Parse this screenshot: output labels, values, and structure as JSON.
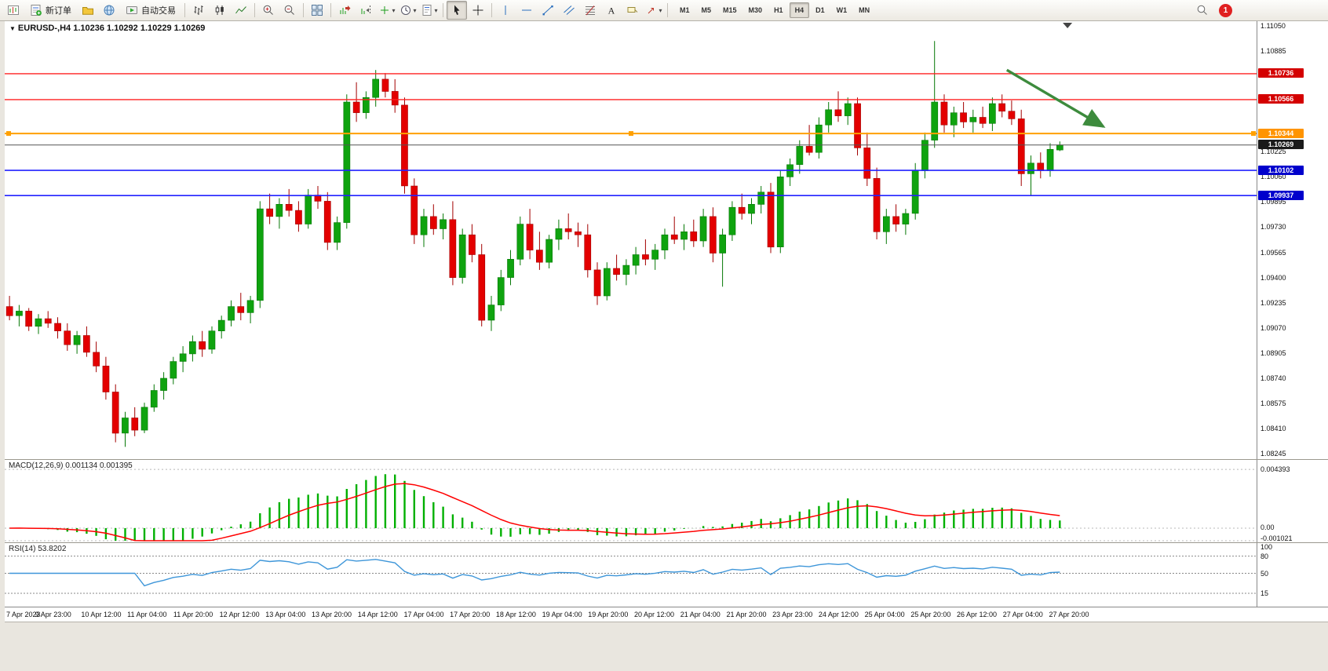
{
  "toolbar": {
    "new_order_label": "新订单",
    "auto_trading_label": "自动交易",
    "timeframes": [
      "M1",
      "M5",
      "M15",
      "M30",
      "H1",
      "H4",
      "D1",
      "W1",
      "MN"
    ],
    "active_timeframe": "H4",
    "notification_count": "1"
  },
  "header": {
    "quote": "EURUSD-,H4  1.10236 1.10292 1.10229 1.10269"
  },
  "chart_data": {
    "type": "candlestick",
    "symbol": "EURUSD-",
    "period": "H4",
    "last": {
      "open": "1.10236",
      "high": "1.10292",
      "low": "1.10229",
      "close": "1.10269"
    },
    "price_min": 1.0821,
    "price_max": 1.1108,
    "right_shift_slots": 20,
    "colors": {
      "background": "#ffffff",
      "up": "#0fa30f",
      "up_border": "#067806",
      "down": "#e30000",
      "down_border": "#a30000"
    },
    "hlines": [
      {
        "price": 1.10736,
        "color": "#ff2020",
        "badge": "#d40000",
        "label": "1.10736",
        "width": 1.4
      },
      {
        "price": 1.10566,
        "color": "#ff2020",
        "badge": "#d40000",
        "label": "1.10566",
        "width": 1.4
      },
      {
        "price": 1.10344,
        "color": "#ffa000",
        "badge": "#ff9400",
        "label": "1.10344",
        "width": 2,
        "selected": true
      },
      {
        "price": 1.10269,
        "color": "#555555",
        "badge": "#1a1a1a",
        "label": "1.10269",
        "width": 1
      },
      {
        "price": 1.10102,
        "color": "#2222ff",
        "badge": "#0000cc",
        "label": "1.10102",
        "width": 1.6
      },
      {
        "price": 1.09937,
        "color": "#2222ff",
        "badge": "#0000cc",
        "label": "1.09937",
        "width": 1.6
      }
    ],
    "price_axis_ticks": [
      1.1105,
      1.10885,
      1.10225,
      1.1006,
      1.09895,
      1.0973,
      1.09565,
      1.094,
      1.09235,
      1.0907,
      1.08905,
      1.0874,
      1.08575,
      1.0841,
      1.08245
    ],
    "candles": [
      [
        1.0921,
        1.0928,
        1.0912,
        1.0915
      ],
      [
        1.0915,
        1.0922,
        1.0908,
        1.0918
      ],
      [
        1.0918,
        1.092,
        1.0905,
        1.0908
      ],
      [
        1.0908,
        1.0916,
        1.0903,
        1.0913
      ],
      [
        1.0913,
        1.0918,
        1.0907,
        1.091
      ],
      [
        1.091,
        1.0914,
        1.09,
        1.0905
      ],
      [
        1.0905,
        1.091,
        1.0892,
        1.0896
      ],
      [
        1.0896,
        1.0905,
        1.089,
        1.0902
      ],
      [
        1.0902,
        1.0908,
        1.0888,
        1.0891
      ],
      [
        1.0891,
        1.0898,
        1.0878,
        1.0882
      ],
      [
        1.0882,
        1.0888,
        1.086,
        1.0865
      ],
      [
        1.0865,
        1.087,
        1.0832,
        1.0838
      ],
      [
        1.0838,
        1.0852,
        1.0829,
        1.0848
      ],
      [
        1.0848,
        1.0855,
        1.0836,
        1.084
      ],
      [
        1.084,
        1.0858,
        1.0838,
        1.0855
      ],
      [
        1.0855,
        1.087,
        1.0852,
        1.0866
      ],
      [
        1.0866,
        1.0878,
        1.086,
        1.0874
      ],
      [
        1.0874,
        1.0888,
        1.087,
        1.0885
      ],
      [
        1.0885,
        1.0895,
        1.0878,
        1.089
      ],
      [
        1.089,
        1.0902,
        1.0885,
        1.0898
      ],
      [
        1.0898,
        1.0905,
        1.0888,
        1.0893
      ],
      [
        1.0893,
        1.0908,
        1.089,
        1.0905
      ],
      [
        1.0905,
        1.0915,
        1.09,
        1.0912
      ],
      [
        1.0912,
        1.0925,
        1.0908,
        1.0921
      ],
      [
        1.0921,
        1.093,
        1.0912,
        1.0917
      ],
      [
        1.0917,
        1.0928,
        1.091,
        1.0925
      ],
      [
        1.0925,
        1.099,
        1.092,
        1.0985
      ],
      [
        1.0985,
        1.0995,
        1.0975,
        1.098
      ],
      [
        1.098,
        1.0992,
        1.0972,
        1.0988
      ],
      [
        1.0988,
        1.0998,
        1.098,
        1.0984
      ],
      [
        1.0984,
        1.099,
        1.097,
        1.0975
      ],
      [
        1.0975,
        1.0998,
        1.0972,
        1.0994
      ],
      [
        1.0994,
        1.1,
        1.0985,
        1.099
      ],
      [
        1.099,
        1.0996,
        1.0958,
        1.0963
      ],
      [
        1.0963,
        1.098,
        1.0958,
        1.0976
      ],
      [
        1.0976,
        1.106,
        1.0972,
        1.1055
      ],
      [
        1.1055,
        1.1068,
        1.1042,
        1.1048
      ],
      [
        1.1048,
        1.1062,
        1.1044,
        1.1058
      ],
      [
        1.1058,
        1.1076,
        1.1052,
        1.107
      ],
      [
        1.107,
        1.1074,
        1.1058,
        1.1062
      ],
      [
        1.1062,
        1.107,
        1.1048,
        1.1053
      ],
      [
        1.1053,
        1.1058,
        1.0995,
        1.1
      ],
      [
        1.1,
        1.1005,
        1.0962,
        1.0968
      ],
      [
        1.0968,
        1.0985,
        1.096,
        1.098
      ],
      [
        1.098,
        1.0988,
        1.0968,
        1.0972
      ],
      [
        1.0972,
        1.0982,
        1.0965,
        1.0978
      ],
      [
        1.0978,
        1.099,
        1.0935,
        1.094
      ],
      [
        1.094,
        1.0972,
        1.0936,
        1.0968
      ],
      [
        1.0968,
        1.0975,
        1.095,
        1.0955
      ],
      [
        1.0955,
        1.0962,
        1.0908,
        1.0912
      ],
      [
        1.0912,
        1.0928,
        1.0905,
        1.0922
      ],
      [
        1.0922,
        1.0945,
        1.0918,
        1.094
      ],
      [
        1.094,
        1.0958,
        1.0935,
        1.0952
      ],
      [
        1.0952,
        1.098,
        1.0948,
        1.0975
      ],
      [
        1.0975,
        1.0985,
        1.0952,
        1.0958
      ],
      [
        1.0958,
        1.097,
        1.0945,
        1.095
      ],
      [
        1.095,
        1.0968,
        1.0946,
        1.0965
      ],
      [
        1.0965,
        1.0978,
        1.0958,
        1.0972
      ],
      [
        1.0972,
        1.0982,
        1.0965,
        1.097
      ],
      [
        1.097,
        1.0976,
        1.096,
        1.0968
      ],
      [
        1.0968,
        1.0975,
        1.094,
        1.0945
      ],
      [
        1.0945,
        1.095,
        1.0922,
        1.0928
      ],
      [
        1.0928,
        1.095,
        1.0925,
        1.0946
      ],
      [
        1.0946,
        1.0955,
        1.0938,
        1.0942
      ],
      [
        1.0942,
        1.0952,
        1.0935,
        1.0948
      ],
      [
        1.0948,
        1.096,
        1.0942,
        1.0955
      ],
      [
        1.0955,
        1.0965,
        1.0948,
        1.0952
      ],
      [
        1.0952,
        1.0962,
        1.0945,
        1.0958
      ],
      [
        1.0958,
        1.0972,
        1.0952,
        1.0968
      ],
      [
        1.0968,
        1.098,
        1.0962,
        1.0965
      ],
      [
        1.0965,
        1.0975,
        1.0958,
        1.097
      ],
      [
        1.097,
        1.0978,
        1.096,
        1.0964
      ],
      [
        1.0964,
        1.0985,
        1.096,
        1.098
      ],
      [
        1.098,
        1.0986,
        1.095,
        1.0956
      ],
      [
        1.0956,
        1.0972,
        1.0934,
        1.0968
      ],
      [
        1.0968,
        1.099,
        1.0964,
        1.0986
      ],
      [
        1.0986,
        1.0995,
        1.0978,
        1.0982
      ],
      [
        1.0982,
        1.0992,
        1.0975,
        1.0988
      ],
      [
        1.0988,
        1.1,
        1.0982,
        1.0996
      ],
      [
        1.0996,
        1.1002,
        1.0956,
        1.096
      ],
      [
        1.096,
        1.101,
        1.0956,
        1.1006
      ],
      [
        1.1006,
        1.1018,
        1.1,
        1.1014
      ],
      [
        1.1014,
        1.103,
        1.1008,
        1.1026
      ],
      [
        1.1026,
        1.104,
        1.102,
        1.1022
      ],
      [
        1.1022,
        1.1045,
        1.1018,
        1.104
      ],
      [
        1.104,
        1.1055,
        1.1035,
        1.105
      ],
      [
        1.105,
        1.1062,
        1.1042,
        1.1046
      ],
      [
        1.1046,
        1.1058,
        1.104,
        1.1054
      ],
      [
        1.1054,
        1.1058,
        1.102,
        1.1025
      ],
      [
        1.1025,
        1.1035,
        1.1,
        1.1005
      ],
      [
        1.1005,
        1.1012,
        1.0965,
        1.097
      ],
      [
        1.097,
        1.0985,
        1.0962,
        1.098
      ],
      [
        1.098,
        1.0988,
        1.097,
        1.0975
      ],
      [
        1.0975,
        1.0985,
        1.0968,
        1.0982
      ],
      [
        1.0982,
        1.1015,
        1.0978,
        1.101
      ],
      [
        1.101,
        1.1035,
        1.1005,
        1.103
      ],
      [
        1.103,
        1.1095,
        1.1025,
        1.1055
      ],
      [
        1.1055,
        1.106,
        1.1035,
        1.104
      ],
      [
        1.104,
        1.1052,
        1.1032,
        1.1048
      ],
      [
        1.1048,
        1.1055,
        1.1038,
        1.1042
      ],
      [
        1.1042,
        1.105,
        1.1035,
        1.1045
      ],
      [
        1.1045,
        1.1052,
        1.1038,
        1.1041
      ],
      [
        1.1041,
        1.1058,
        1.1036,
        1.1054
      ],
      [
        1.1054,
        1.106,
        1.1045,
        1.1049
      ],
      [
        1.1049,
        1.1056,
        1.104,
        1.1044
      ],
      [
        1.1044,
        1.105,
        1.1,
        1.1008
      ],
      [
        1.1008,
        1.102,
        1.0994,
        1.1015
      ],
      [
        1.1015,
        1.1022,
        1.1005,
        1.101
      ],
      [
        1.101,
        1.1028,
        1.1006,
        1.1024
      ],
      [
        1.10236,
        1.10292,
        1.10229,
        1.10269
      ]
    ],
    "time_labels": [
      "7 Apr 2023",
      "9 Apr 23:00",
      "10 Apr 12:00",
      "11 Apr 04:00",
      "11 Apr 20:00",
      "12 Apr 12:00",
      "13 Apr 04:00",
      "13 Apr 20:00",
      "14 Apr 12:00",
      "17 Apr 04:00",
      "17 Apr 20:00",
      "18 Apr 12:00",
      "19 Apr 04:00",
      "19 Apr 20:00",
      "20 Apr 12:00",
      "21 Apr 04:00",
      "21 Apr 20:00",
      "23 Apr 23:00",
      "24 Apr 12:00",
      "25 Apr 04:00",
      "25 Apr 20:00",
      "26 Apr 12:00",
      "27 Apr 04:00",
      "27 Apr 20:00"
    ],
    "arrow": {
      "slot1": 104,
      "price1": 1.1076,
      "slot2": 114,
      "price2": 1.1039,
      "color": "#3d8b3d"
    }
  },
  "macd": {
    "label": "MACD(12,26,9)",
    "main_value": "0.001134",
    "signal_value": "0.001395",
    "axis_max_label": "0.004393",
    "axis_zero_label": "0.00",
    "axis_min_label": "-0.001021",
    "histogram_color": "#00b000",
    "signal_color": "#ff0000"
  },
  "rsi": {
    "label": "RSI(14)",
    "value": "53.8202",
    "axis_ticks": [
      100,
      80,
      50,
      15
    ],
    "levels": [
      80,
      50,
      15
    ],
    "line_color": "#3e96d9"
  }
}
